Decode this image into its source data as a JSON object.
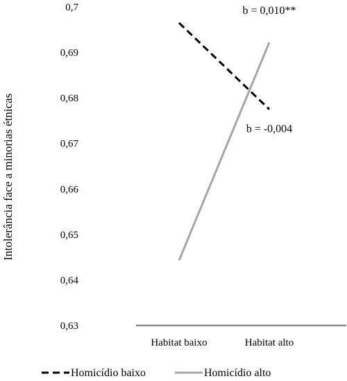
{
  "chart_data": {
    "type": "line",
    "title": "",
    "xlabel": "",
    "ylabel": "Intolerância face a minorias étnicas",
    "ylim": [
      0.63,
      0.7
    ],
    "yticks": [
      "0,63",
      "0,64",
      "0,65",
      "0,66",
      "0,67",
      "0,68",
      "0,69",
      "0,7"
    ],
    "categories": [
      "Habitat baixo",
      "Habitat alto"
    ],
    "grid": false,
    "legend_position": "bottom",
    "series": [
      {
        "name": "Homicídio baixo",
        "values": [
          0.6965,
          0.6775
        ],
        "color": "#000000",
        "style": "dashed"
      },
      {
        "name": "Homicídio alto",
        "values": [
          0.6443,
          0.6922
        ],
        "color": "#a6a6a6",
        "style": "solid"
      }
    ],
    "annotations": [
      {
        "text": "b = 0,010**",
        "category_index": 1,
        "y": 0.6985
      },
      {
        "text": "b = -0,004",
        "category_index": 1,
        "y": 0.6725
      }
    ]
  }
}
